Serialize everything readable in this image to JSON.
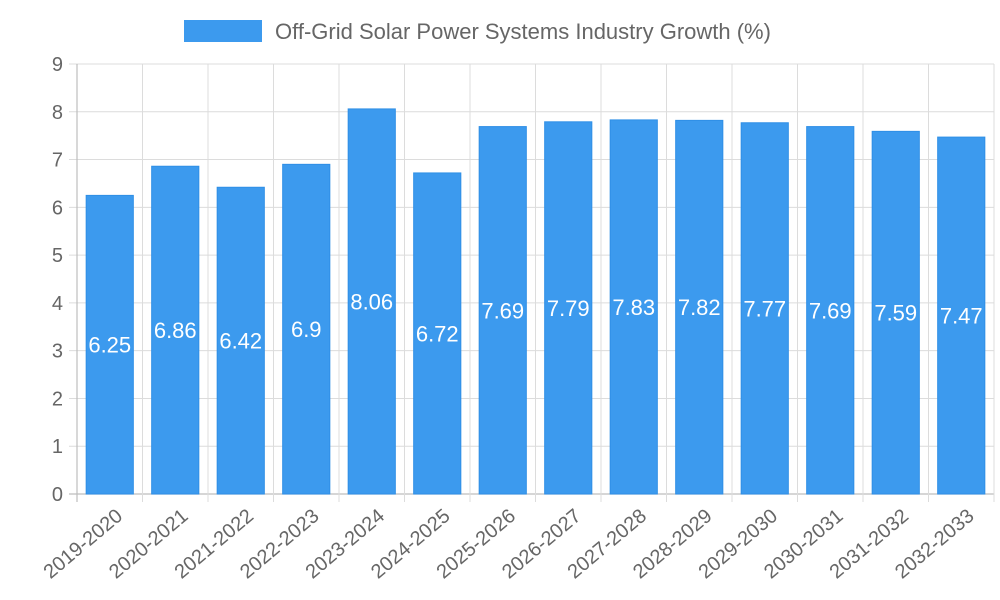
{
  "chart_data": {
    "type": "bar",
    "title": "",
    "xlabel": "",
    "ylabel": "",
    "ylim": [
      0,
      9
    ],
    "y_ticks": [
      0,
      1,
      2,
      3,
      4,
      5,
      6,
      7,
      8,
      9
    ],
    "grid": true,
    "legend": {
      "placement": "top-center"
    },
    "categories": [
      "2019-2020",
      "2020-2021",
      "2021-2022",
      "2022-2023",
      "2023-2024",
      "2024-2025",
      "2025-2026",
      "2026-2027",
      "2027-2028",
      "2028-2029",
      "2029-2030",
      "2030-2031",
      "2031-2032",
      "2032-2033"
    ],
    "series": [
      {
        "name": "Off-Grid Solar Power Systems Industry Growth (%)",
        "color": "#3c9aee",
        "values": [
          6.25,
          6.86,
          6.42,
          6.9,
          8.06,
          6.72,
          7.69,
          7.79,
          7.83,
          7.82,
          7.77,
          7.69,
          7.59,
          7.47
        ],
        "data_labels": [
          "6.25",
          "6.86",
          "6.42",
          "6.9",
          "8.06",
          "6.72",
          "7.69",
          "7.79",
          "7.83",
          "7.82",
          "7.77",
          "7.69",
          "7.59",
          "7.47"
        ]
      }
    ]
  }
}
